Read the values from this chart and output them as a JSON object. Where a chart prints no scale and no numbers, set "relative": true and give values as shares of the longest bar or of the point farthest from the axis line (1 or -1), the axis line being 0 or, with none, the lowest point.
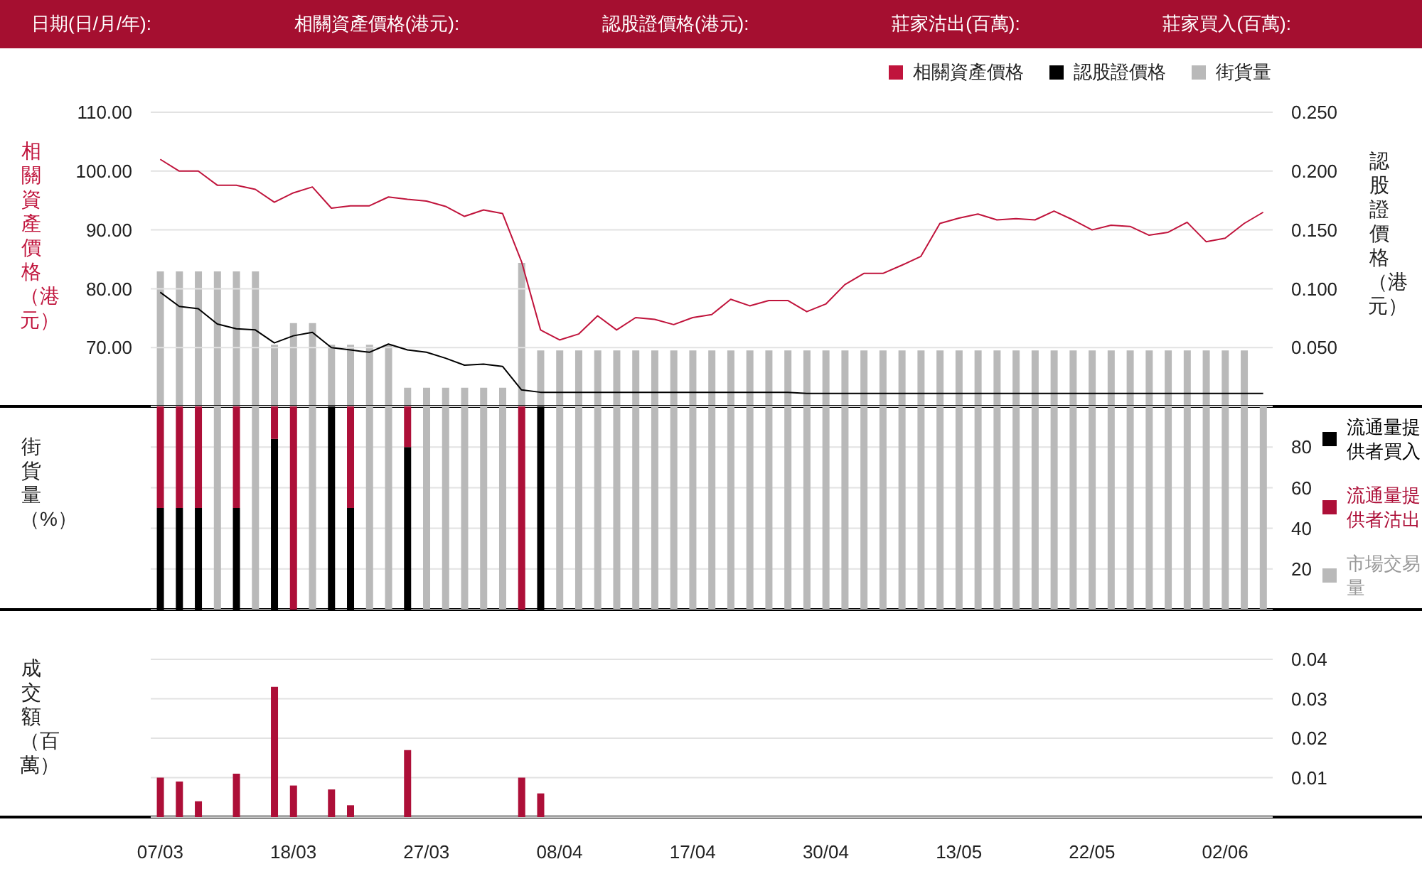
{
  "chart_data": [
    {
      "type": "other",
      "annotations": [
        "日期(日/月/年):",
        "相關資產價格(港元):",
        "認股證價格(港元):",
        "莊家沽出(百萬):",
        "莊家買入(百萬):"
      ]
    },
    {
      "type": "line",
      "ylabel": "相關資產價格（港元）",
      "y2label": "認股證價格（港元）",
      "categories": [
        null,
        null,
        null,
        null,
        null,
        null,
        null,
        null,
        null,
        null,
        null,
        null,
        null,
        null,
        null,
        null,
        null,
        null,
        null,
        null,
        null,
        null,
        null,
        null,
        null,
        null,
        null,
        null,
        null,
        null,
        null,
        null,
        null,
        null,
        null,
        null,
        null,
        null,
        null,
        null,
        null,
        null,
        null,
        null,
        null,
        null,
        null,
        null,
        null,
        null,
        null,
        null,
        null,
        null,
        null,
        null,
        null,
        null,
        null
      ],
      "series": [
        {
          "name": "相關資產價格",
          "color": "#c0143c",
          "values": [
            102.0,
            100.0,
            100.0,
            97.6,
            97.6,
            96.9,
            94.7,
            96.3,
            97.3,
            93.7,
            94.1,
            94.1,
            95.6,
            95.2,
            94.9,
            94.0,
            92.3,
            93.4,
            92.8,
            84.6,
            73.0,
            71.3,
            72.3,
            75.4,
            73.0,
            75.1,
            74.8,
            73.9,
            75.1,
            75.6,
            78.2,
            77.1,
            78.0,
            78.0,
            76.1,
            77.4,
            80.7,
            82.6,
            82.6,
            84.0,
            85.5,
            91.1,
            92.0,
            92.7,
            91.7,
            91.9,
            91.7,
            93.2,
            91.7,
            90.0,
            90.8,
            90.6,
            89.1,
            89.6,
            91.3,
            88.0,
            88.6,
            91.1,
            93.0
          ]
        },
        {
          "name": "認股證價格",
          "color": "#000000",
          "axis": "y2",
          "values": [
            0.097,
            0.085,
            0.083,
            0.07,
            0.066,
            0.065,
            0.054,
            0.06,
            0.063,
            0.05,
            0.048,
            0.046,
            0.053,
            0.048,
            0.046,
            0.041,
            0.035,
            0.036,
            0.034,
            0.014,
            0.012,
            0.012,
            0.012,
            0.012,
            0.012,
            0.012,
            0.012,
            0.012,
            0.012,
            0.012,
            0.012,
            0.012,
            0.012,
            0.012,
            0.011,
            0.011,
            0.011,
            0.011,
            0.011,
            0.011,
            0.011,
            0.011,
            0.011,
            0.011,
            0.011,
            0.011,
            0.011,
            0.011,
            0.011,
            0.011,
            0.011,
            0.011,
            0.011,
            0.011,
            0.011,
            0.011,
            0.011,
            0.011,
            0.011
          ]
        }
      ],
      "ylim": [
        60,
        110
      ],
      "yticks": [
        {
          "value": 70,
          "label": "70.00"
        },
        {
          "value": 80,
          "label": "80.00"
        },
        {
          "value": 90,
          "label": "90.00"
        },
        {
          "value": 100,
          "label": "100.00"
        },
        {
          "value": 110,
          "label": "110.00"
        }
      ],
      "y2lim": [
        0,
        0.25
      ],
      "y2ticks": [
        {
          "value": 0.05,
          "label": "0.050"
        },
        {
          "value": 0.1,
          "label": "0.100"
        },
        {
          "value": 0.15,
          "label": "0.150"
        },
        {
          "value": 0.2,
          "label": "0.200"
        },
        {
          "value": 0.25,
          "label": "0.250"
        }
      ],
      "grid": "y",
      "legend": "top right",
      "marker": "none",
      "line_style": "solid",
      "tick_labels": "y"
    },
    {
      "type": "bar",
      "relative": true,
      "tick_labels": false,
      "legend": "top right",
      "categories": [
        null,
        null,
        null,
        null,
        null,
        null,
        null,
        null,
        null,
        null,
        null,
        null,
        null,
        null,
        null,
        null,
        null,
        null,
        null,
        null,
        null,
        null,
        null,
        null,
        null,
        null,
        null,
        null,
        null,
        null,
        null,
        null,
        null,
        null,
        null,
        null,
        null,
        null,
        null,
        null,
        null,
        null,
        null,
        null,
        null,
        null,
        null,
        null,
        null,
        null,
        null,
        null,
        null,
        null,
        null,
        null,
        null,
        null,
        null
      ],
      "series": [
        {
          "name": "街貨量",
          "color": "#b9b9b9",
          "values": [
            0.94,
            0.94,
            0.94,
            0.94,
            0.94,
            0.94,
            0.43,
            0.58,
            0.58,
            0.43,
            0.43,
            0.43,
            0.43,
            0.13,
            0.13,
            0.13,
            0.13,
            0.13,
            0.13,
            1,
            0.39,
            0.39,
            0.39,
            0.39,
            0.39,
            0.39,
            0.39,
            0.39,
            0.39,
            0.39,
            0.39,
            0.39,
            0.39,
            0.39,
            0.39,
            0.39,
            0.39,
            0.39,
            0.39,
            0.39,
            0.39,
            0.39,
            0.39,
            0.39,
            0.39,
            0.39,
            0.39,
            0.39,
            0.39,
            0.39,
            0.39,
            0.39,
            0.39,
            0.39,
            0.39,
            0.39,
            0.39,
            0.39,
            null
          ]
        }
      ]
    },
    {
      "type": "bar",
      "stacked": true,
      "ylabel": "街貨量（%）",
      "tick_labels": "y",
      "grid": "y",
      "legend": "right",
      "categories": [
        null,
        null,
        null,
        null,
        null,
        null,
        null,
        null,
        null,
        null,
        null,
        null,
        null,
        null,
        null,
        null,
        null,
        null,
        null,
        null,
        null,
        null,
        null,
        null,
        null,
        null,
        null,
        null,
        null,
        null,
        null,
        null,
        null,
        null,
        null,
        null,
        null,
        null,
        null,
        null,
        null,
        null,
        null,
        null,
        null,
        null,
        null,
        null,
        null,
        null,
        null,
        null,
        null,
        null,
        null,
        null,
        null,
        null,
        null
      ],
      "series": [
        {
          "name": "流通量提供者買入",
          "color": "#000000",
          "values": [
            50,
            50,
            50,
            null,
            50,
            null,
            84,
            null,
            null,
            100,
            50,
            null,
            null,
            80,
            null,
            null,
            null,
            null,
            null,
            null,
            100,
            null,
            null,
            null,
            null,
            null,
            null,
            null,
            null,
            null,
            null,
            null,
            null,
            null,
            null,
            null,
            null,
            null,
            null,
            null,
            null,
            null,
            null,
            null,
            null,
            null,
            null,
            null,
            null,
            null,
            null,
            null,
            null,
            null,
            null,
            null,
            null,
            null,
            null
          ]
        },
        {
          "name": "流通量提供者沽出",
          "color": "#ad0f38",
          "values": [
            50,
            50,
            50,
            null,
            50,
            null,
            16,
            100,
            null,
            null,
            50,
            null,
            null,
            20,
            null,
            null,
            null,
            null,
            null,
            100,
            null,
            null,
            null,
            null,
            null,
            null,
            null,
            null,
            null,
            null,
            null,
            null,
            null,
            null,
            null,
            null,
            null,
            null,
            null,
            null,
            null,
            null,
            null,
            null,
            null,
            null,
            null,
            null,
            null,
            null,
            null,
            null,
            null,
            null,
            null,
            null,
            null,
            null,
            null
          ]
        },
        {
          "name": "市場交易量",
          "color": "#b9b9b9",
          "values": [
            null,
            null,
            null,
            100,
            null,
            100,
            null,
            null,
            100,
            null,
            null,
            100,
            100,
            null,
            100,
            100,
            100,
            100,
            100,
            null,
            null,
            100,
            100,
            100,
            100,
            100,
            100,
            100,
            100,
            100,
            100,
            100,
            100,
            100,
            100,
            100,
            100,
            100,
            100,
            100,
            100,
            100,
            100,
            100,
            100,
            100,
            100,
            100,
            100,
            100,
            100,
            100,
            100,
            100,
            100,
            100,
            100,
            100,
            100
          ]
        }
      ],
      "ylim": [
        0,
        100
      ],
      "yticks": [
        20,
        40,
        60,
        80
      ]
    },
    {
      "type": "bar",
      "ylabel": "成交額（百萬）",
      "grid": "y",
      "categories": [
        "07/03",
        null,
        null,
        null,
        null,
        null,
        null,
        "18/03",
        null,
        null,
        null,
        null,
        null,
        null,
        "27/03",
        null,
        null,
        null,
        null,
        null,
        null,
        "08/04",
        null,
        null,
        null,
        null,
        null,
        null,
        "17/04",
        null,
        null,
        null,
        null,
        null,
        null,
        "30/04",
        null,
        null,
        null,
        null,
        null,
        null,
        "13/05",
        null,
        null,
        null,
        null,
        null,
        null,
        "22/05",
        null,
        null,
        null,
        null,
        null,
        null,
        "02/06",
        null,
        null
      ],
      "values": [
        0.01,
        0.009,
        0.004,
        null,
        0.011,
        null,
        0.033,
        0.008,
        null,
        0.007,
        0.003,
        null,
        null,
        0.017,
        null,
        null,
        null,
        null,
        null,
        0.01,
        0.006,
        null,
        null,
        null,
        null,
        null,
        null,
        null,
        null,
        null,
        null,
        null,
        null,
        null,
        null,
        null,
        null,
        null,
        null,
        null,
        null,
        null,
        null,
        null,
        null,
        null,
        null,
        null,
        null,
        null,
        null,
        null,
        null,
        null,
        null,
        null,
        null,
        null,
        null
      ],
      "color": "#ad0f38",
      "ylim": [
        0,
        0.04
      ],
      "yticks": [
        0.01,
        0.02,
        0.03,
        0.04
      ]
    }
  ]
}
